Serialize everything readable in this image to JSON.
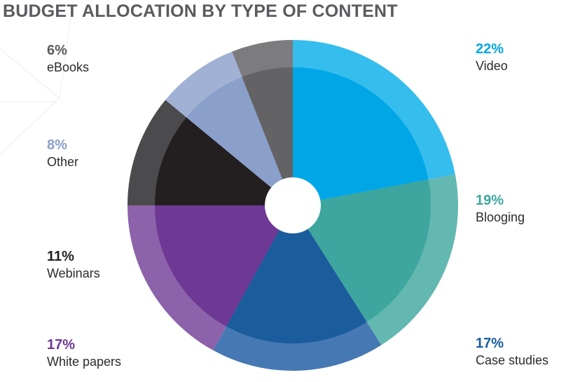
{
  "chart_data": {
    "type": "pie",
    "title": "BUDGET ALLOCATION BY TYPE OF CONTENT",
    "slices": [
      {
        "name": "Video",
        "label": "22%",
        "value": 22,
        "inner_color": "#00a6e6",
        "outer_color": "#35bdee",
        "label_color": "#00a6e6"
      },
      {
        "name": "Blooging",
        "label": "19%",
        "value": 19,
        "inner_color": "#3ea69e",
        "outer_color": "#63b8b1",
        "label_color": "#3ea69e"
      },
      {
        "name": "Case studies",
        "label": "17%",
        "value": 17,
        "inner_color": "#1a5c9c",
        "outer_color": "#4679b3",
        "label_color": "#1a5c9c"
      },
      {
        "name": "White papers",
        "label": "17%",
        "value": 17,
        "inner_color": "#6e3895",
        "outer_color": "#8c62ab",
        "label_color": "#6e3895"
      },
      {
        "name": "Webinars",
        "label": "11%",
        "value": 11,
        "inner_color": "#231f20",
        "outer_color": "#4b4a4c",
        "label_color": "#231f20"
      },
      {
        "name": "Other",
        "label": "8%",
        "value": 8,
        "inner_color": "#8a9fc9",
        "outer_color": "#a1b1d3",
        "label_color": "#8a9fc9"
      },
      {
        "name": "eBooks",
        "label": "6%",
        "value": 6,
        "inner_color": "#636366",
        "outer_color": "#7c7c7f",
        "label_color": "#5b5b5f"
      }
    ]
  }
}
